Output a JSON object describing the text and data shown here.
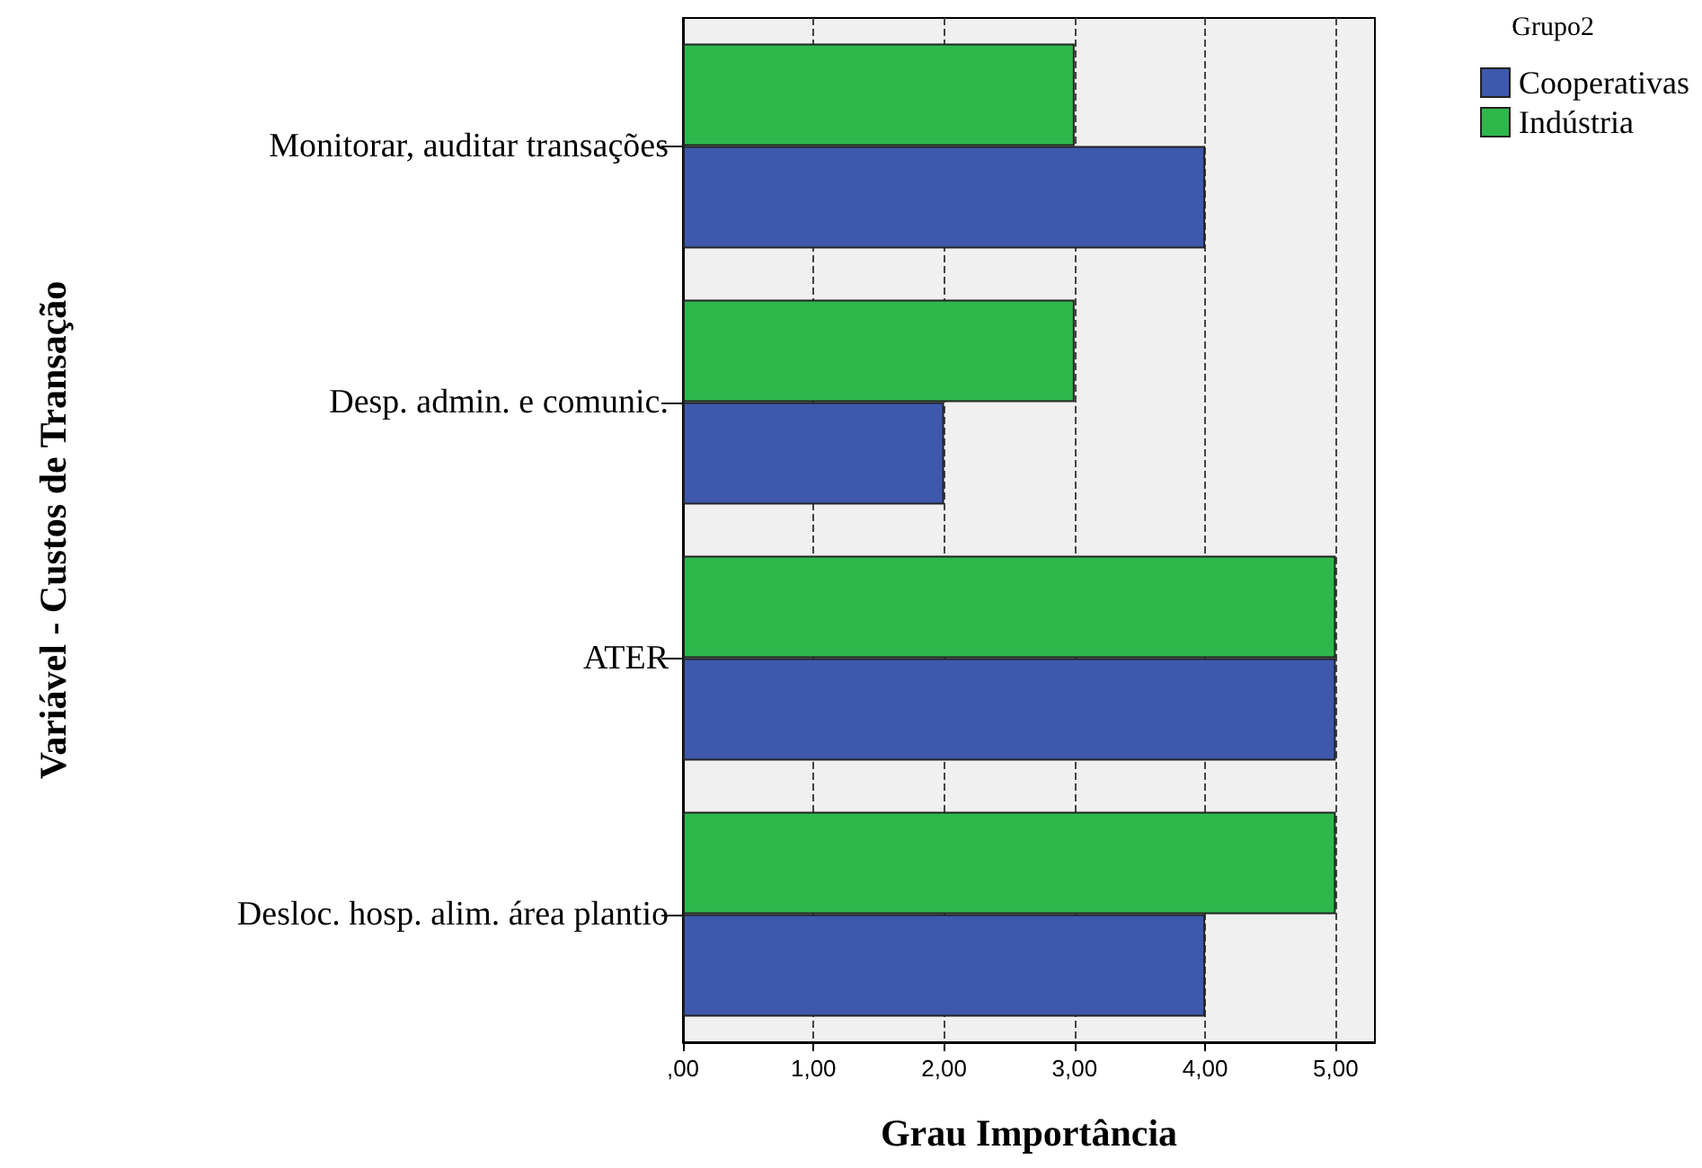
{
  "chart_data": {
    "type": "bar",
    "orientation": "horizontal",
    "xlabel": "Grau Importância",
    "ylabel": "Variável - Custos de Transação",
    "legend_title": "Grupo2",
    "categories": [
      "Monitorar, auditar transações",
      "Desp. admin. e comunic.",
      "ATER",
      "Desloc. hosp. alim. área plantio"
    ],
    "series": [
      {
        "name": "Cooperativas",
        "color": "#3e58ac",
        "values": [
          4,
          2,
          5,
          4
        ]
      },
      {
        "name": "Indústria",
        "color": "#2eb84c",
        "values": [
          3,
          3,
          5,
          5
        ]
      }
    ],
    "xlim": [
      0,
      5.3
    ],
    "xticks": [
      {
        "value": 0,
        "label": ",00"
      },
      {
        "value": 1,
        "label": "1,00"
      },
      {
        "value": 2,
        "label": "2,00"
      },
      {
        "value": 3,
        "label": "3,00"
      },
      {
        "value": 4,
        "label": "4,00"
      },
      {
        "value": 5,
        "label": "5,00"
      }
    ],
    "grid": "x",
    "legend": "top right"
  }
}
